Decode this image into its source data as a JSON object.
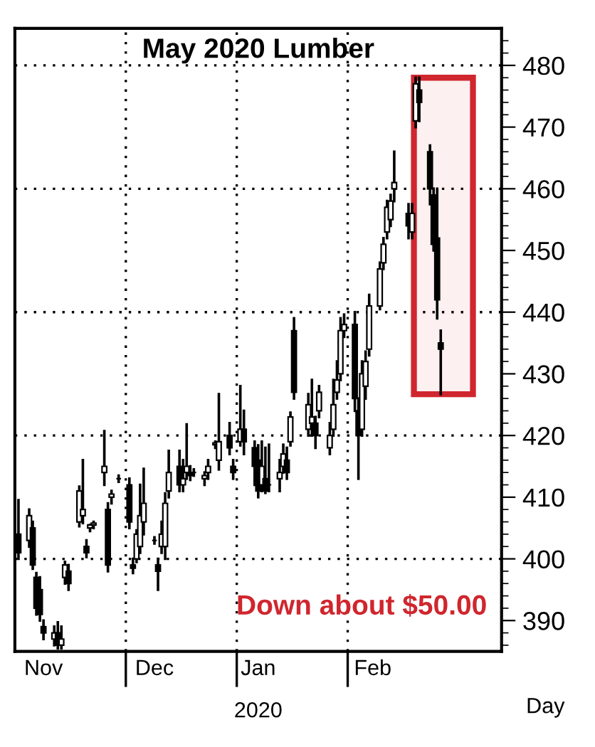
{
  "chart_data": {
    "type": "candlestick",
    "title": "May 2020 Lumber",
    "xlabel": "2020",
    "color": "#000000",
    "x": [
      "2019-11-01",
      "2019-11-04",
      "2019-11-05",
      "2019-11-06",
      "2019-11-07",
      "2019-11-08",
      "2019-11-11",
      "2019-11-12",
      "2019-11-13",
      "2019-11-14",
      "2019-11-15",
      "2019-11-18",
      "2019-11-19",
      "2019-11-20",
      "2019-11-21",
      "2019-11-22",
      "2019-11-25",
      "2019-11-26",
      "2019-11-27",
      "2019-11-29",
      "2019-12-02",
      "2019-12-03",
      "2019-12-04",
      "2019-12-05",
      "2019-12-06",
      "2019-12-09",
      "2019-12-10",
      "2019-12-11",
      "2019-12-12",
      "2019-12-13",
      "2019-12-16",
      "2019-12-17",
      "2019-12-18",
      "2019-12-19",
      "2019-12-20",
      "2019-12-23",
      "2019-12-24",
      "2019-12-26",
      "2019-12-27",
      "2019-12-30",
      "2019-12-31",
      "2020-01-02",
      "2020-01-03",
      "2020-01-06",
      "2020-01-07",
      "2020-01-08",
      "2020-01-09",
      "2020-01-10",
      "2020-01-13",
      "2020-01-14",
      "2020-01-15",
      "2020-01-16",
      "2020-01-17",
      "2020-01-21",
      "2020-01-22",
      "2020-01-23",
      "2020-01-24",
      "2020-01-27",
      "2020-01-28",
      "2020-01-29",
      "2020-01-30",
      "2020-01-31",
      "2020-02-03",
      "2020-02-04",
      "2020-02-05",
      "2020-02-06",
      "2020-02-07",
      "2020-02-10",
      "2020-02-11",
      "2020-02-12",
      "2020-02-13",
      "2020-02-14",
      "2020-02-18",
      "2020-02-19",
      "2020-02-20",
      "2020-02-21",
      "2020-02-24",
      "2020-02-25",
      "2020-02-26",
      "2020-02-27"
    ],
    "ohlc": [
      [
        404,
        409.5,
        400,
        401
      ],
      [
        403,
        408,
        402,
        407
      ],
      [
        405,
        406,
        398.4,
        399
      ],
      [
        397,
        397.7,
        391,
        392
      ],
      [
        395,
        397,
        390,
        391
      ],
      [
        389,
        390,
        387,
        388
      ],
      [
        387,
        389,
        386,
        388
      ],
      [
        388,
        389.7,
        385.5,
        386
      ],
      [
        386,
        389,
        385.5,
        387
      ],
      [
        397,
        399.5,
        396,
        399
      ],
      [
        398,
        399,
        395,
        396
      ],
      [
        406,
        411.7,
        405.3,
        411
      ],
      [
        407,
        416,
        405.8,
        408
      ],
      [
        402,
        403,
        400.3,
        401
      ],
      [
        405,
        405.5,
        404.5,
        405.5
      ],
      [
        405.5,
        406,
        405,
        405.8
      ],
      [
        414,
        420.7,
        412,
        415
      ],
      [
        408,
        409,
        398,
        399
      ],
      [
        410,
        411,
        409,
        410.5
      ],
      [
        413,
        413.5,
        412.5,
        413
      ],
      [
        412,
        413,
        405,
        406
      ],
      [
        399,
        400,
        397.7,
        398.5
      ],
      [
        400,
        404.6,
        399.5,
        404
      ],
      [
        402,
        412,
        401,
        407
      ],
      [
        406,
        414.6,
        404,
        409
      ],
      [
        403,
        403.5,
        402.5,
        403
      ],
      [
        399,
        400,
        395,
        398
      ],
      [
        402,
        406,
        401,
        404
      ],
      [
        402,
        410.6,
        400,
        409
      ],
      [
        411,
        417.5,
        410,
        414
      ],
      [
        415,
        417.5,
        411,
        412
      ],
      [
        412,
        416,
        411,
        413
      ],
      [
        414,
        421.8,
        413,
        415
      ],
      [
        414,
        415,
        412.8,
        413.5
      ],
      [
        414,
        414.5,
        413.5,
        414
      ],
      [
        413,
        414,
        412,
        413.5
      ],
      [
        414,
        416,
        413,
        415
      ],
      [
        418.5,
        419,
        418,
        418.8
      ],
      [
        416,
        426.7,
        414.5,
        419
      ],
      [
        420,
        422,
        417,
        418
      ],
      [
        415,
        416,
        413,
        414
      ],
      [
        419,
        428,
        418.4,
        421
      ],
      [
        421,
        424,
        417,
        419
      ],
      [
        418,
        419,
        412,
        415
      ],
      [
        416,
        418.4,
        410,
        411
      ],
      [
        412,
        419,
        411,
        415
      ],
      [
        413,
        418,
        410.7,
        411
      ],
      [
        412,
        418.5,
        411,
        412
      ],
      [
        413,
        416,
        411,
        414
      ],
      [
        415,
        418.5,
        414,
        417
      ],
      [
        416,
        418,
        413,
        414
      ],
      [
        419,
        423.7,
        418.4,
        423
      ],
      [
        437,
        439,
        426,
        427
      ],
      [
        421,
        426.7,
        420,
        425
      ],
      [
        422,
        429,
        420,
        423
      ],
      [
        422,
        423,
        418,
        420
      ],
      [
        424,
        428,
        423,
        427
      ],
      [
        418,
        422,
        417,
        420
      ],
      [
        421,
        429,
        420,
        425
      ],
      [
        427,
        432,
        426,
        429
      ],
      [
        430,
        439,
        429,
        437
      ],
      [
        437,
        439.6,
        436,
        438
      ],
      [
        438,
        440,
        424,
        426
      ],
      [
        424,
        426,
        413,
        420
      ],
      [
        421,
        432,
        420,
        430
      ],
      [
        428,
        433.6,
        426,
        432
      ],
      [
        434,
        442.8,
        433,
        441
      ],
      [
        441,
        448,
        440.5,
        447
      ],
      [
        448,
        452,
        447,
        451
      ],
      [
        453,
        458,
        452,
        457
      ],
      [
        455,
        459,
        454,
        458
      ],
      [
        460,
        466,
        458,
        461
      ],
      [
        456,
        457.5,
        452,
        454
      ],
      [
        453,
        457.5,
        452,
        456
      ],
      [
        471,
        478,
        470,
        477
      ],
      [
        476,
        478,
        471,
        474
      ],
      [
        466,
        467,
        457.5,
        460
      ],
      [
        459,
        460,
        450,
        451
      ],
      [
        452,
        460,
        439,
        442
      ],
      [
        435,
        437,
        426.7,
        434
      ]
    ],
    "xlim": [
      "2019-10-31",
      "2020-03-15"
    ],
    "xticks": [
      {
        "value": "2019-12-01",
        "label": null
      },
      {
        "value": "2020-01-01",
        "label": null
      },
      {
        "value": "2020-02-01",
        "label": null
      },
      {
        "value": "2019-11-08",
        "label": "Nov"
      },
      {
        "value": "2019-12-09",
        "label": "Dec"
      },
      {
        "value": "2020-01-07",
        "label": "Jan"
      },
      {
        "value": "2020-02-08",
        "label": "Feb"
      }
    ],
    "ylim": [
      385,
      486
    ],
    "yticks": [
      390,
      400,
      410,
      420,
      430,
      440,
      450,
      460,
      470,
      480,
      {
        "value": 386,
        "label": null
      },
      {
        "value": 388,
        "label": null
      },
      {
        "value": 392,
        "label": null
      },
      {
        "value": 394,
        "label": null
      },
      {
        "value": 396,
        "label": null
      },
      {
        "value": 398,
        "label": null
      },
      {
        "value": 402,
        "label": null
      },
      {
        "value": 404,
        "label": null
      },
      {
        "value": 406,
        "label": null
      },
      {
        "value": 408,
        "label": null
      },
      {
        "value": 412,
        "label": null
      },
      {
        "value": 414,
        "label": null
      },
      {
        "value": 416,
        "label": null
      },
      {
        "value": 418,
        "label": null
      },
      {
        "value": 422,
        "label": null
      },
      {
        "value": 424,
        "label": null
      },
      {
        "value": 426,
        "label": null
      },
      {
        "value": 428,
        "label": null
      },
      {
        "value": 432,
        "label": null
      },
      {
        "value": 434,
        "label": null
      },
      {
        "value": 436,
        "label": null
      },
      {
        "value": 438,
        "label": null
      },
      {
        "value": 442,
        "label": null
      },
      {
        "value": 444,
        "label": null
      },
      {
        "value": 446,
        "label": null
      },
      {
        "value": 448,
        "label": null
      },
      {
        "value": 452,
        "label": null
      },
      {
        "value": 454,
        "label": null
      },
      {
        "value": 456,
        "label": null
      },
      {
        "value": 458,
        "label": null
      },
      {
        "value": 462,
        "label": null
      },
      {
        "value": 464,
        "label": null
      },
      {
        "value": 466,
        "label": null
      },
      {
        "value": 468,
        "label": null
      },
      {
        "value": 472,
        "label": null
      },
      {
        "value": 474,
        "label": null
      },
      {
        "value": 476,
        "label": null
      },
      {
        "value": 478,
        "label": null
      },
      {
        "value": 482,
        "label": null
      },
      {
        "value": 484,
        "label": null
      }
    ],
    "ref_lines": [
      {
        "axis": "y",
        "value": 400,
        "line_style": "dotted",
        "color": "#000000"
      },
      {
        "axis": "y",
        "value": 420,
        "line_style": "dotted",
        "color": "#000000"
      },
      {
        "axis": "y",
        "value": 440,
        "line_style": "dotted",
        "color": "#000000"
      },
      {
        "axis": "y",
        "value": 460,
        "line_style": "dotted",
        "color": "#000000"
      },
      {
        "axis": "y",
        "value": 480,
        "line_style": "dotted",
        "color": "#000000"
      },
      {
        "axis": "x",
        "value": "2019-12-01",
        "line_style": "dotted",
        "color": "#000000"
      },
      {
        "axis": "x",
        "value": "2020-01-01",
        "line_style": "dotted",
        "color": "#000000"
      },
      {
        "axis": "x",
        "value": "2020-02-01",
        "line_style": "dotted",
        "color": "#000000"
      }
    ],
    "bands": [
      {
        "axis": "x",
        "from": "2020-02-19T12:00",
        "to": "2020-03-07",
        "color": "#d0262e"
      }
    ],
    "annotations": [
      "Down about $50.00",
      "Day"
    ],
    "grid": false
  }
}
